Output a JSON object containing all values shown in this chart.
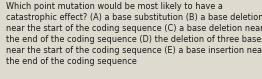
{
  "lines": [
    "Which point mutation would be most likely to have a",
    "catastrophic effect? (A) a base substitution (B) a base deletion",
    "near the start of the coding sequence (C) a base deletion near",
    "the end of the coding sequence (D) the deletion of three bases",
    "near the start of the coding sequence (E) a base insertion near",
    "the end of the coding sequence"
  ],
  "background_color": "#dedad0",
  "text_color": "#1a1a1a",
  "font_size": 5.85,
  "fig_width": 2.62,
  "fig_height": 0.79,
  "dpi": 100
}
